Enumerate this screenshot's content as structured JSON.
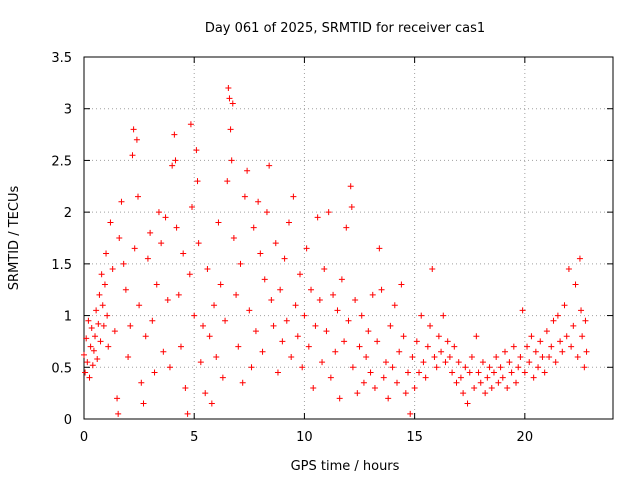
{
  "chart_data": {
    "type": "scatter",
    "title": "Day 061 of 2025, SRMTID for receiver cas1",
    "xlabel": "GPS time / hours",
    "ylabel": "SRMTID / TECUs",
    "xlim": [
      0,
      24
    ],
    "ylim": [
      0,
      3.5
    ],
    "x_ticks": [
      0,
      5,
      10,
      15,
      20
    ],
    "x_tick_labels": [
      "0",
      "5",
      "10",
      "15",
      "20"
    ],
    "y_ticks": [
      0,
      0.5,
      1,
      1.5,
      2,
      2.5,
      3,
      3.5
    ],
    "y_tick_labels": [
      "0",
      "0.5",
      "1",
      "1.5",
      "2",
      "2.5",
      "3",
      "3.5"
    ],
    "grid": true,
    "series": [
      {
        "name": "SRMTID",
        "marker": "plus",
        "color": "#ff0000",
        "points": [
          [
            0.0,
            0.62
          ],
          [
            0.05,
            0.45
          ],
          [
            0.1,
            0.78
          ],
          [
            0.15,
            0.55
          ],
          [
            0.2,
            0.95
          ],
          [
            0.25,
            0.4
          ],
          [
            0.3,
            0.7
          ],
          [
            0.35,
            0.88
          ],
          [
            0.4,
            0.52
          ],
          [
            0.45,
            0.66
          ],
          [
            0.5,
            0.8
          ],
          [
            0.55,
            1.05
          ],
          [
            0.6,
            0.58
          ],
          [
            0.65,
            0.92
          ],
          [
            0.7,
            1.2
          ],
          [
            0.75,
            0.75
          ],
          [
            0.8,
            1.4
          ],
          [
            0.85,
            1.1
          ],
          [
            0.9,
            0.9
          ],
          [
            0.95,
            1.3
          ],
          [
            1.0,
            1.6
          ],
          [
            1.05,
            1.0
          ],
          [
            1.1,
            0.7
          ],
          [
            1.2,
            1.9
          ],
          [
            1.3,
            1.45
          ],
          [
            1.4,
            0.85
          ],
          [
            1.5,
            0.2
          ],
          [
            1.55,
            0.05
          ],
          [
            1.6,
            1.75
          ],
          [
            1.7,
            2.1
          ],
          [
            1.8,
            1.5
          ],
          [
            1.9,
            1.25
          ],
          [
            2.0,
            0.6
          ],
          [
            2.1,
            0.9
          ],
          [
            2.2,
            2.55
          ],
          [
            2.25,
            2.8
          ],
          [
            2.3,
            1.65
          ],
          [
            2.4,
            2.7
          ],
          [
            2.45,
            2.15
          ],
          [
            2.5,
            1.1
          ],
          [
            2.6,
            0.35
          ],
          [
            2.7,
            0.15
          ],
          [
            2.8,
            0.8
          ],
          [
            2.9,
            1.55
          ],
          [
            3.0,
            1.8
          ],
          [
            3.1,
            0.95
          ],
          [
            3.2,
            0.45
          ],
          [
            3.3,
            1.3
          ],
          [
            3.4,
            2.0
          ],
          [
            3.5,
            1.7
          ],
          [
            3.6,
            0.65
          ],
          [
            3.7,
            1.95
          ],
          [
            3.8,
            1.15
          ],
          [
            3.9,
            0.5
          ],
          [
            4.0,
            2.45
          ],
          [
            4.1,
            2.75
          ],
          [
            4.15,
            2.5
          ],
          [
            4.2,
            1.85
          ],
          [
            4.3,
            1.2
          ],
          [
            4.4,
            0.7
          ],
          [
            4.5,
            1.6
          ],
          [
            4.6,
            0.3
          ],
          [
            4.7,
            0.05
          ],
          [
            4.8,
            1.4
          ],
          [
            4.85,
            2.85
          ],
          [
            4.9,
            2.05
          ],
          [
            5.0,
            1.0
          ],
          [
            5.1,
            2.6
          ],
          [
            5.15,
            2.3
          ],
          [
            5.2,
            1.7
          ],
          [
            5.3,
            0.55
          ],
          [
            5.4,
            0.9
          ],
          [
            5.5,
            0.25
          ],
          [
            5.6,
            1.45
          ],
          [
            5.7,
            0.8
          ],
          [
            5.8,
            0.15
          ],
          [
            5.9,
            1.1
          ],
          [
            6.0,
            0.6
          ],
          [
            6.1,
            1.9
          ],
          [
            6.2,
            1.3
          ],
          [
            6.3,
            0.4
          ],
          [
            6.4,
            0.95
          ],
          [
            6.5,
            2.3
          ],
          [
            6.55,
            3.2
          ],
          [
            6.6,
            3.1
          ],
          [
            6.65,
            2.8
          ],
          [
            6.7,
            2.5
          ],
          [
            6.75,
            3.05
          ],
          [
            6.8,
            1.75
          ],
          [
            6.9,
            1.2
          ],
          [
            7.0,
            0.7
          ],
          [
            7.1,
            1.5
          ],
          [
            7.2,
            0.35
          ],
          [
            7.3,
            2.15
          ],
          [
            7.4,
            2.4
          ],
          [
            7.5,
            1.05
          ],
          [
            7.6,
            0.5
          ],
          [
            7.7,
            1.85
          ],
          [
            7.8,
            0.85
          ],
          [
            7.9,
            2.1
          ],
          [
            8.0,
            1.6
          ],
          [
            8.1,
            0.65
          ],
          [
            8.2,
            1.35
          ],
          [
            8.3,
            2.0
          ],
          [
            8.4,
            2.45
          ],
          [
            8.5,
            1.15
          ],
          [
            8.6,
            0.9
          ],
          [
            8.7,
            1.7
          ],
          [
            8.8,
            0.45
          ],
          [
            8.9,
            1.25
          ],
          [
            9.0,
            0.75
          ],
          [
            9.1,
            1.55
          ],
          [
            9.2,
            0.95
          ],
          [
            9.3,
            1.9
          ],
          [
            9.4,
            0.6
          ],
          [
            9.5,
            2.15
          ],
          [
            9.6,
            1.1
          ],
          [
            9.7,
            0.8
          ],
          [
            9.8,
            1.4
          ],
          [
            9.9,
            0.5
          ],
          [
            10.0,
            1.0
          ],
          [
            10.1,
            1.65
          ],
          [
            10.2,
            0.7
          ],
          [
            10.3,
            1.25
          ],
          [
            10.4,
            0.3
          ],
          [
            10.5,
            0.9
          ],
          [
            10.6,
            1.95
          ],
          [
            10.7,
            1.15
          ],
          [
            10.8,
            0.55
          ],
          [
            10.9,
            1.45
          ],
          [
            11.0,
            0.85
          ],
          [
            11.1,
            2.0
          ],
          [
            11.2,
            0.4
          ],
          [
            11.3,
            1.2
          ],
          [
            11.4,
            0.65
          ],
          [
            11.5,
            1.05
          ],
          [
            11.6,
            0.2
          ],
          [
            11.7,
            1.35
          ],
          [
            11.8,
            0.75
          ],
          [
            11.9,
            1.85
          ],
          [
            12.0,
            0.95
          ],
          [
            12.1,
            2.25
          ],
          [
            12.15,
            2.05
          ],
          [
            12.2,
            0.5
          ],
          [
            12.3,
            1.15
          ],
          [
            12.4,
            0.25
          ],
          [
            12.5,
            0.7
          ],
          [
            12.6,
            1.0
          ],
          [
            12.7,
            0.35
          ],
          [
            12.8,
            0.6
          ],
          [
            12.9,
            0.85
          ],
          [
            13.0,
            0.45
          ],
          [
            13.1,
            1.2
          ],
          [
            13.2,
            0.3
          ],
          [
            13.3,
            0.75
          ],
          [
            13.4,
            1.65
          ],
          [
            13.5,
            1.25
          ],
          [
            13.6,
            0.4
          ],
          [
            13.7,
            0.55
          ],
          [
            13.8,
            0.2
          ],
          [
            13.9,
            0.9
          ],
          [
            14.0,
            0.5
          ],
          [
            14.1,
            1.1
          ],
          [
            14.2,
            0.35
          ],
          [
            14.3,
            0.65
          ],
          [
            14.4,
            1.3
          ],
          [
            14.5,
            0.8
          ],
          [
            14.6,
            0.25
          ],
          [
            14.7,
            0.45
          ],
          [
            14.8,
            0.05
          ],
          [
            14.9,
            0.6
          ],
          [
            15.0,
            0.3
          ],
          [
            15.1,
            0.75
          ],
          [
            15.2,
            0.45
          ],
          [
            15.3,
            1.0
          ],
          [
            15.4,
            0.55
          ],
          [
            15.5,
            0.4
          ],
          [
            15.6,
            0.7
          ],
          [
            15.7,
            0.9
          ],
          [
            15.8,
            1.45
          ],
          [
            15.9,
            0.6
          ],
          [
            16.0,
            0.5
          ],
          [
            16.1,
            0.8
          ],
          [
            16.2,
            0.65
          ],
          [
            16.3,
            1.0
          ],
          [
            16.4,
            0.55
          ],
          [
            16.5,
            0.75
          ],
          [
            16.6,
            0.6
          ],
          [
            16.7,
            0.45
          ],
          [
            16.8,
            0.7
          ],
          [
            16.9,
            0.35
          ],
          [
            17.0,
            0.55
          ],
          [
            17.1,
            0.4
          ],
          [
            17.2,
            0.25
          ],
          [
            17.3,
            0.5
          ],
          [
            17.4,
            0.15
          ],
          [
            17.5,
            0.45
          ],
          [
            17.6,
            0.6
          ],
          [
            17.7,
            0.3
          ],
          [
            17.8,
            0.8
          ],
          [
            17.9,
            0.45
          ],
          [
            18.0,
            0.35
          ],
          [
            18.1,
            0.55
          ],
          [
            18.2,
            0.25
          ],
          [
            18.3,
            0.4
          ],
          [
            18.4,
            0.5
          ],
          [
            18.5,
            0.3
          ],
          [
            18.6,
            0.45
          ],
          [
            18.7,
            0.6
          ],
          [
            18.8,
            0.35
          ],
          [
            18.9,
            0.5
          ],
          [
            19.0,
            0.4
          ],
          [
            19.1,
            0.65
          ],
          [
            19.2,
            0.3
          ],
          [
            19.3,
            0.55
          ],
          [
            19.4,
            0.45
          ],
          [
            19.5,
            0.7
          ],
          [
            19.6,
            0.35
          ],
          [
            19.7,
            0.5
          ],
          [
            19.8,
            0.6
          ],
          [
            19.9,
            1.05
          ],
          [
            20.0,
            0.45
          ],
          [
            20.1,
            0.7
          ],
          [
            20.2,
            0.55
          ],
          [
            20.3,
            0.8
          ],
          [
            20.4,
            0.4
          ],
          [
            20.5,
            0.65
          ],
          [
            20.6,
            0.5
          ],
          [
            20.7,
            0.75
          ],
          [
            20.8,
            0.6
          ],
          [
            20.9,
            0.45
          ],
          [
            21.0,
            0.85
          ],
          [
            21.1,
            0.6
          ],
          [
            21.2,
            0.7
          ],
          [
            21.3,
            0.95
          ],
          [
            21.4,
            0.55
          ],
          [
            21.5,
            1.0
          ],
          [
            21.6,
            0.75
          ],
          [
            21.7,
            0.65
          ],
          [
            21.8,
            1.1
          ],
          [
            21.9,
            0.8
          ],
          [
            22.0,
            1.45
          ],
          [
            22.1,
            0.7
          ],
          [
            22.2,
            0.9
          ],
          [
            22.3,
            1.3
          ],
          [
            22.4,
            0.6
          ],
          [
            22.5,
            1.55
          ],
          [
            22.55,
            1.05
          ],
          [
            22.6,
            0.8
          ],
          [
            22.7,
            0.5
          ],
          [
            22.75,
            0.95
          ],
          [
            22.8,
            0.65
          ]
        ]
      }
    ]
  }
}
